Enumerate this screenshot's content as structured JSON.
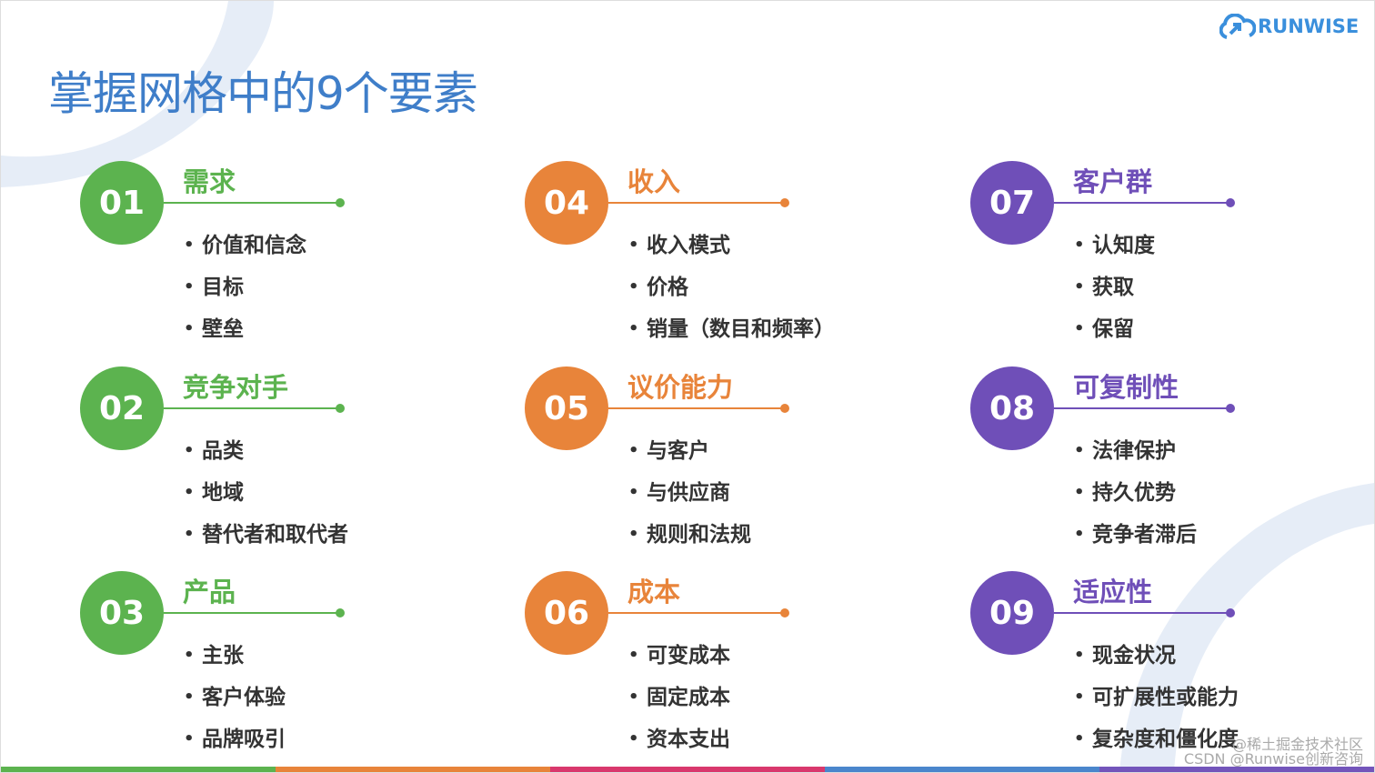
{
  "title": "掌握网格中的9个要素",
  "logo": {
    "text": "RUNWISE",
    "icon": "cloud-arrow-icon"
  },
  "colors": {
    "green": "#5cb34f",
    "orange": "#e8843a",
    "purple": "#6f4fb8",
    "title": "#3f7ec9"
  },
  "groups": [
    {
      "num": "01",
      "title": "需求",
      "color": "#5cb34f",
      "items": [
        "价值和信念",
        "目标",
        "壁垒"
      ]
    },
    {
      "num": "02",
      "title": "竞争对手",
      "color": "#5cb34f",
      "items": [
        "品类",
        "地域",
        "替代者和取代者"
      ]
    },
    {
      "num": "03",
      "title": "产品",
      "color": "#5cb34f",
      "items": [
        "主张",
        "客户体验",
        "品牌吸引"
      ]
    },
    {
      "num": "04",
      "title": "收入",
      "color": "#e8843a",
      "items": [
        "收入模式",
        "价格",
        "销量（数目和频率）"
      ]
    },
    {
      "num": "05",
      "title": "议价能力",
      "color": "#e8843a",
      "items": [
        "与客户",
        "与供应商",
        "规则和法规"
      ]
    },
    {
      "num": "06",
      "title": "成本",
      "color": "#e8843a",
      "items": [
        "可变成本",
        "固定成本",
        "资本支出"
      ]
    },
    {
      "num": "07",
      "title": "客户群",
      "color": "#6f4fb8",
      "items": [
        "认知度",
        "获取",
        "保留"
      ]
    },
    {
      "num": "08",
      "title": "可复制性",
      "color": "#6f4fb8",
      "items": [
        "法律保护",
        "持久优势",
        "竞争者滞后"
      ]
    },
    {
      "num": "09",
      "title": "适应性",
      "color": "#6f4fb8",
      "items": [
        "现金状况",
        "可扩展性或能力",
        "复杂度和僵化度"
      ]
    }
  ],
  "bottom_bar_colors": [
    "#5cb34f",
    "#e8843a",
    "#d9386d",
    "#4a86cc",
    "#7355bb"
  ],
  "watermark": {
    "line1": "@稀土掘金技术社区",
    "line2": "CSDN @Runwise创新咨询"
  }
}
